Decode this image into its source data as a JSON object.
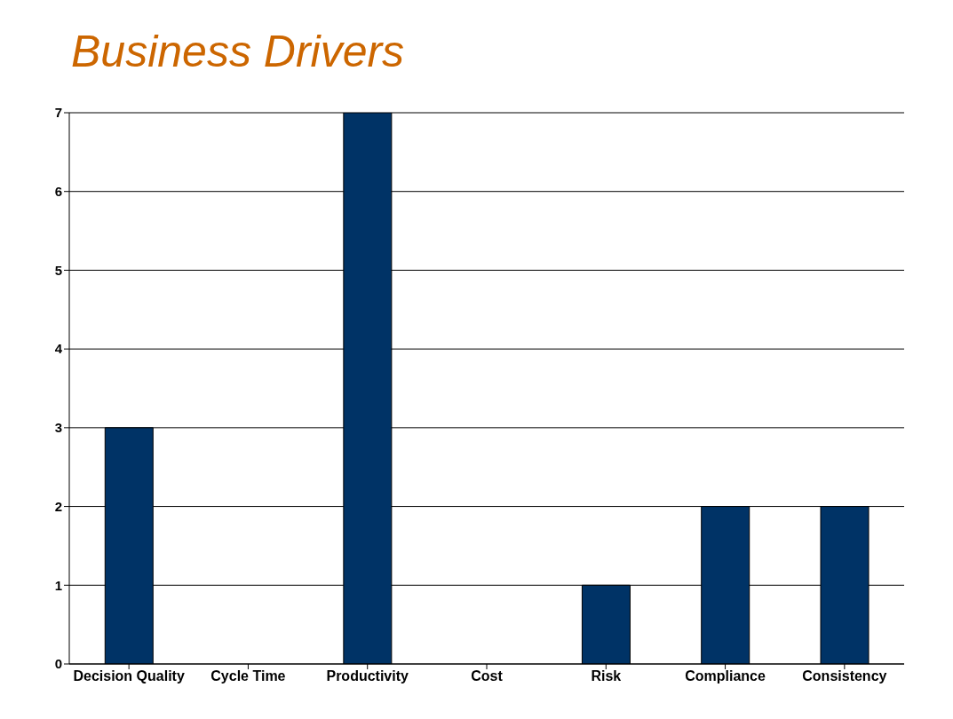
{
  "chart_data": {
    "type": "bar",
    "title": "Business Drivers",
    "categories": [
      "Decision Quality",
      "Cycle Time",
      "Productivity",
      "Cost",
      "Risk",
      "Compliance",
      "Consistency"
    ],
    "values": [
      3,
      0,
      7,
      0,
      1,
      2,
      2
    ],
    "color": "#003366",
    "ylim": [
      0,
      7
    ],
    "yticks": [
      0,
      1,
      2,
      3,
      4,
      5,
      6,
      7
    ],
    "grid": "y",
    "legend": false
  }
}
